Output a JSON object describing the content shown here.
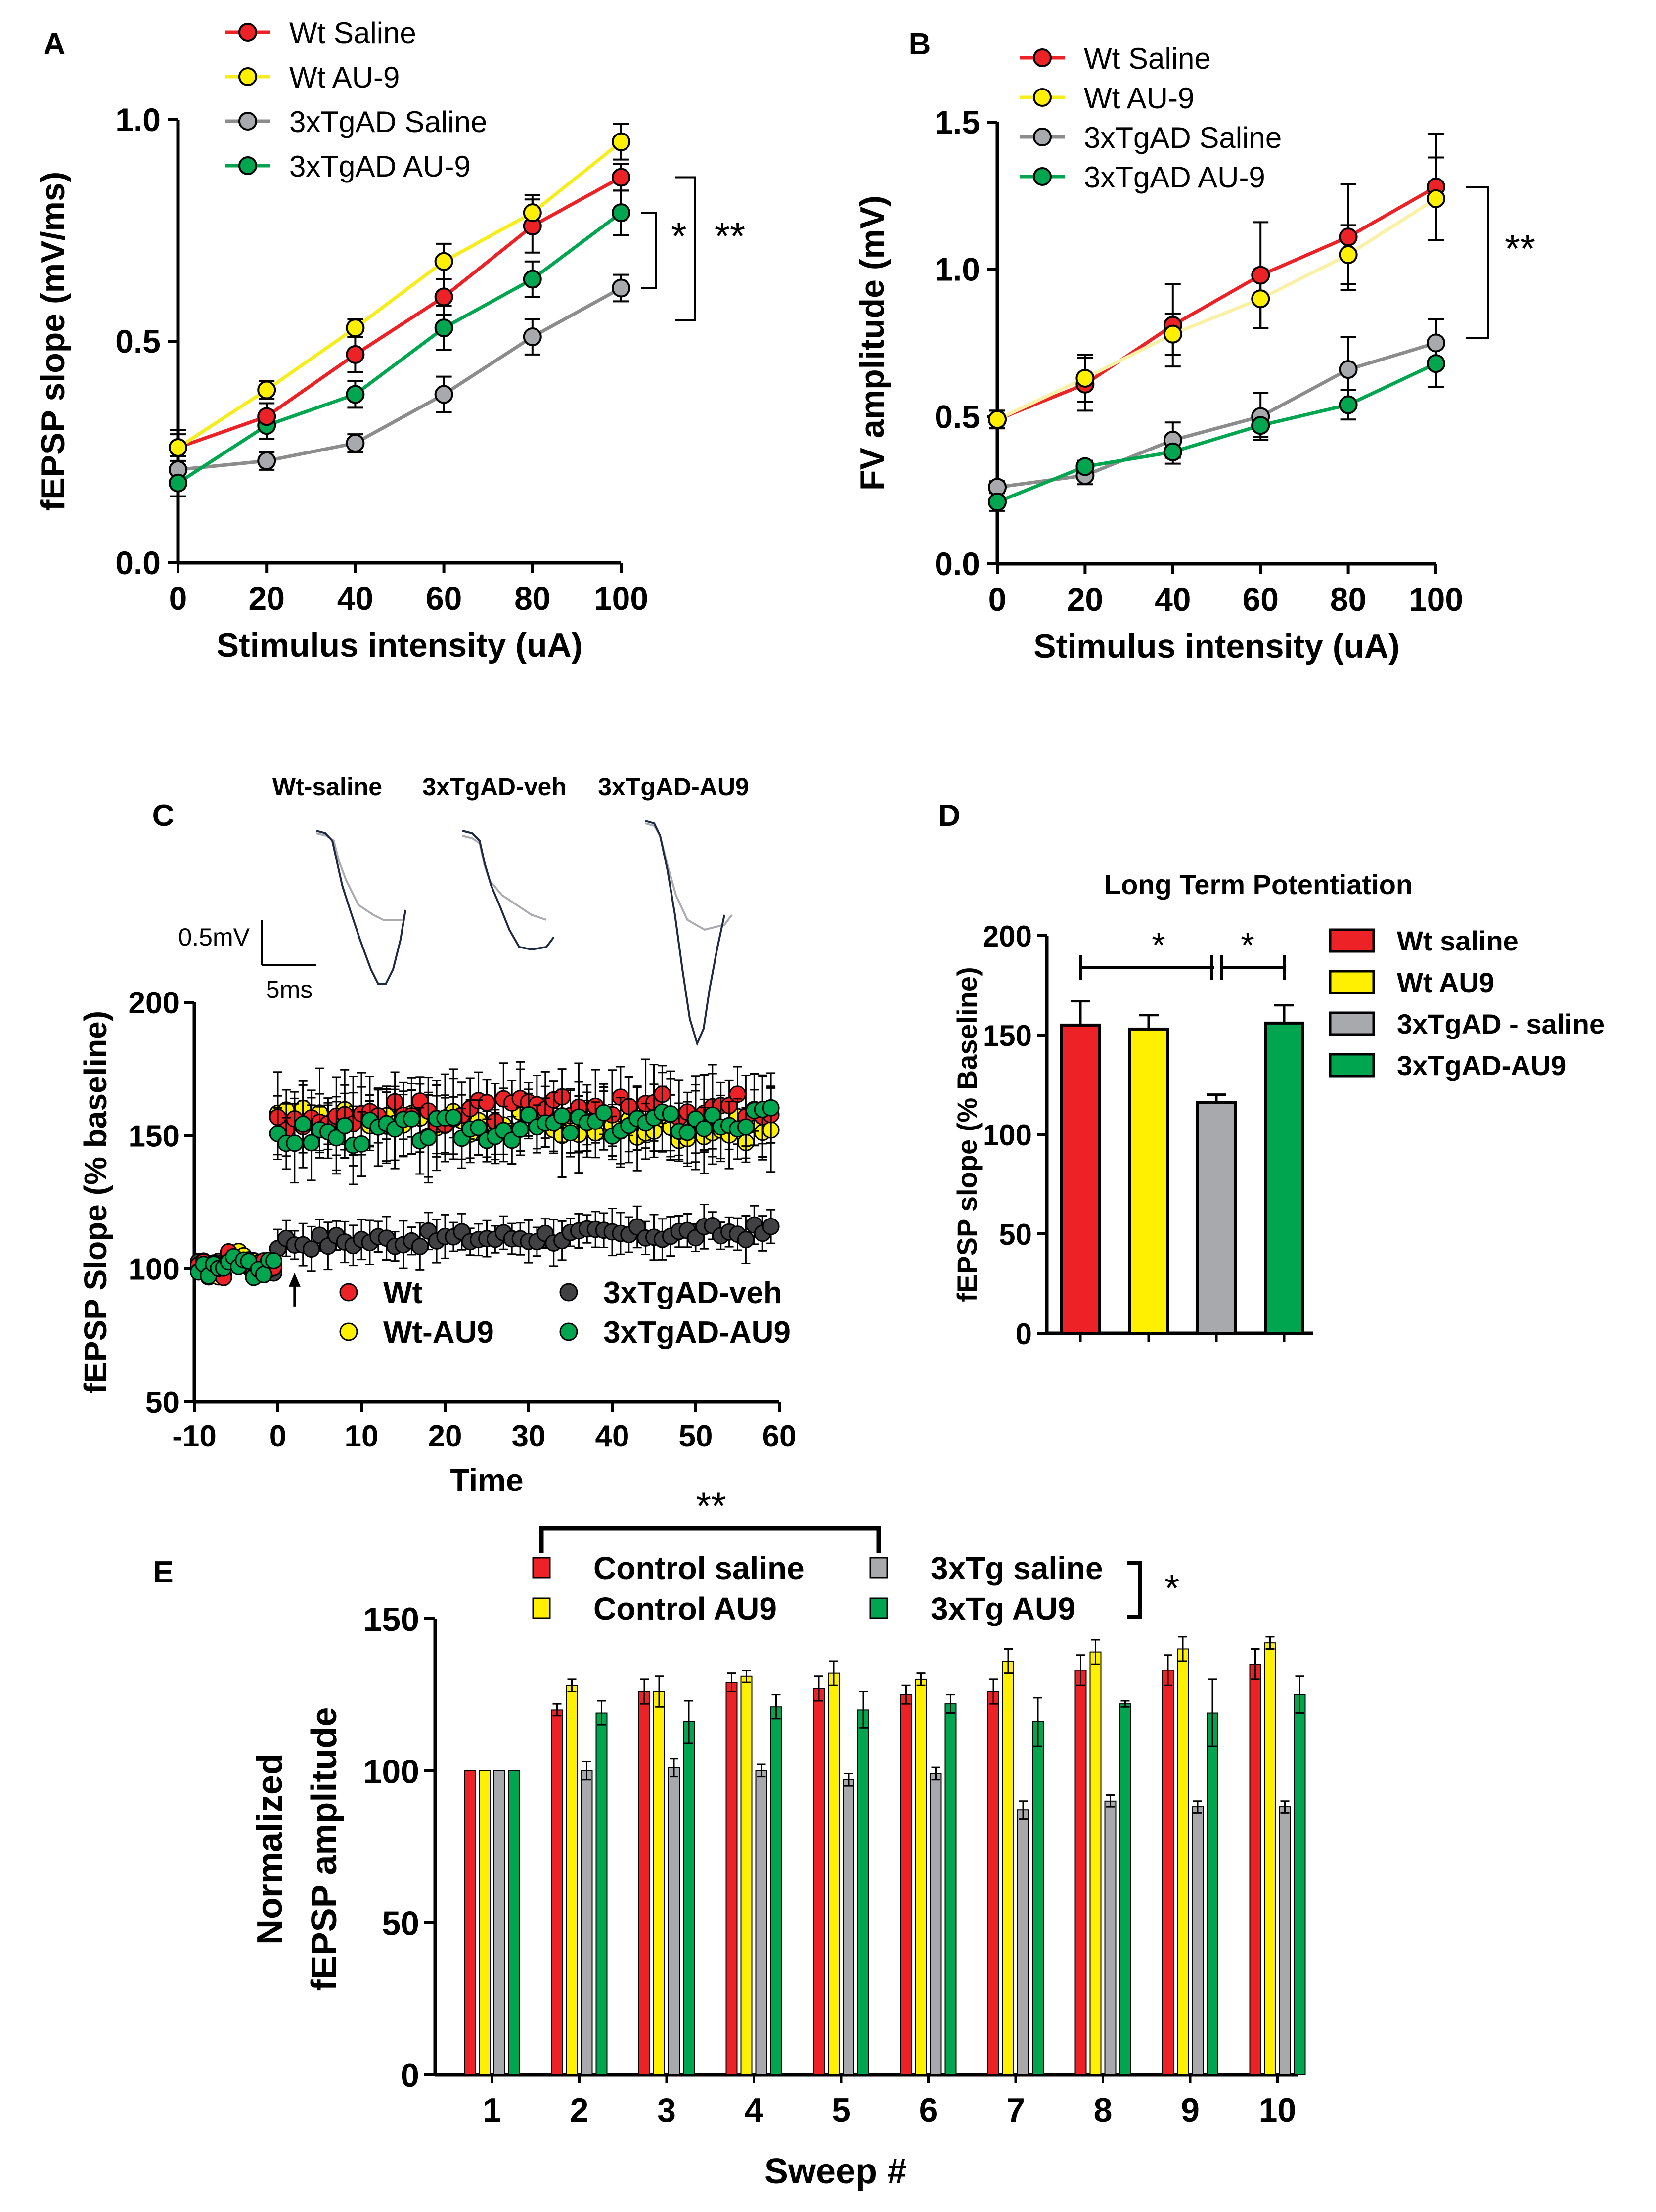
{
  "colors": {
    "red": "#EC2227",
    "yellow": "#FFEF00",
    "yellow_line": "#F6EE1C",
    "yellow_light": "#F9F1A5",
    "gray": "#8C8C8C",
    "gray_marker": "#A7A9AC",
    "gray_dark": "#414042",
    "green": "#00A64F",
    "bar_gray": "#A7A9AC",
    "trace_dark": "#1E2A44",
    "trace_light": "#A9ABB0"
  },
  "chart_data": [
    {
      "panel": "A",
      "type": "line",
      "xlabel": "Stimulus intensity (uA)",
      "ylabel": "fEPSP slope (mV/ms)",
      "xlim": [
        0,
        100
      ],
      "ylim": [
        0,
        1.0
      ],
      "xticks": [
        "0",
        "20",
        "40",
        "60",
        "80",
        "100"
      ],
      "yticks": [
        "0.0",
        "0.5",
        "1.0"
      ],
      "x": [
        0,
        20,
        40,
        60,
        80,
        100
      ],
      "series": [
        {
          "name": "Wt Saline",
          "color": "#EC2227",
          "values": [
            0.26,
            0.33,
            0.47,
            0.6,
            0.76,
            0.87
          ],
          "err": [
            0.04,
            0.03,
            0.04,
            0.04,
            0.06,
            0.03
          ]
        },
        {
          "name": "Wt AU-9",
          "color": "#FFEF00",
          "values": [
            0.26,
            0.39,
            0.53,
            0.68,
            0.79,
            0.95
          ],
          "err": [
            0.03,
            0.02,
            0.02,
            0.04,
            0.04,
            0.04
          ]
        },
        {
          "name": "3xTgAD Saline",
          "color": "#8C8C8C",
          "values": [
            0.21,
            0.23,
            0.27,
            0.38,
            0.51,
            0.62
          ],
          "err": [
            0.03,
            0.02,
            0.02,
            0.04,
            0.04,
            0.03
          ]
        },
        {
          "name": "3xTgAD AU-9",
          "color": "#00A64F",
          "values": [
            0.18,
            0.31,
            0.38,
            0.53,
            0.64,
            0.79
          ],
          "err": [
            0.03,
            0.03,
            0.03,
            0.05,
            0.04,
            0.05
          ]
        }
      ],
      "annotations": [
        "*",
        "**"
      ]
    },
    {
      "panel": "B",
      "type": "line",
      "xlabel": "Stimulus intensity (uA)",
      "ylabel": "FV amplitude (mV)",
      "xlim": [
        0,
        100
      ],
      "ylim": [
        0,
        1.5
      ],
      "xticks": [
        "0",
        "20",
        "40",
        "60",
        "80",
        "100"
      ],
      "yticks": [
        "0.0",
        "0.5",
        "1.0",
        "1.5"
      ],
      "x": [
        0,
        20,
        40,
        60,
        80,
        100
      ],
      "series": [
        {
          "name": "Wt Saline",
          "color": "#EC2227",
          "values": [
            0.49,
            0.61,
            0.81,
            0.98,
            1.11,
            1.28
          ],
          "err": [
            0.03,
            0.09,
            0.14,
            0.18,
            0.18,
            0.18
          ]
        },
        {
          "name": "Wt  AU-9",
          "color": "#FFEF00",
          "values": [
            0.49,
            0.63,
            0.78,
            0.9,
            1.05,
            1.24
          ],
          "err": [
            0.03,
            0.08,
            0.07,
            0.1,
            0.1,
            0.14
          ]
        },
        {
          "name": "3xTgAD Saline",
          "color": "#8C8C8C",
          "values": [
            0.26,
            0.3,
            0.42,
            0.5,
            0.66,
            0.75
          ],
          "err": [
            0.02,
            0.03,
            0.06,
            0.08,
            0.11,
            0.08
          ]
        },
        {
          "name": "3xTgAD AU-9",
          "color": "#00A64F",
          "values": [
            0.21,
            0.33,
            0.38,
            0.47,
            0.54,
            0.68
          ],
          "err": [
            0.03,
            0.02,
            0.04,
            0.04,
            0.05,
            0.08
          ]
        }
      ],
      "annotations": [
        "**"
      ]
    },
    {
      "panel": "C",
      "type": "scatter",
      "xlabel": "Time",
      "ylabel": "fEPSP Slope (% baseline)",
      "xlim": [
        -10,
        60
      ],
      "ylim": [
        50,
        200
      ],
      "xticks": [
        "-10",
        "0",
        "10",
        "20",
        "30",
        "40",
        "50",
        "60"
      ],
      "yticks": [
        "50",
        "100",
        "150",
        "200"
      ],
      "series": [
        {
          "name": "Wt",
          "color": "#EC2227",
          "baseline": 100,
          "post": 157,
          "end": 162
        },
        {
          "name": "Wt-AU9",
          "color": "#FFEF00",
          "baseline": 100,
          "post": 156,
          "end": 152
        },
        {
          "name": "3xTgAD-veh",
          "color": "#414042",
          "baseline": 100,
          "post": 110,
          "end": 114
        },
        {
          "name": "3xTgAD-AU9",
          "color": "#00A64F",
          "baseline": 100,
          "post": 150,
          "end": 156
        }
      ],
      "trace_labels": [
        "Wt-saline",
        "3xTgAD-veh",
        "3xTgAD-AU9"
      ],
      "scalebar": {
        "v": "0.5mV",
        "t": "5ms"
      }
    },
    {
      "panel": "D",
      "type": "bar",
      "title": "Long Term Potentiation",
      "ylabel": "fEPSP slope (% Baseline)",
      "ylim": [
        0,
        200
      ],
      "yticks": [
        "0",
        "50",
        "100",
        "150",
        "200"
      ],
      "categories": [
        "Wt saline",
        "Wt AU9",
        "3xTgAD - saline",
        "3xTgAD-AU9"
      ],
      "colors": [
        "#EC2227",
        "#FFEF00",
        "#A7A9AC",
        "#00A64F"
      ],
      "values": [
        155,
        153,
        116,
        156
      ],
      "err": [
        12,
        7,
        4,
        9
      ],
      "annotations": [
        "*",
        "*"
      ]
    },
    {
      "panel": "E",
      "type": "bar",
      "xlabel": "Sweep #",
      "ylabel_lines": [
        "Normalized",
        "fEPSP amplitude"
      ],
      "ylim": [
        0,
        150
      ],
      "yticks": [
        "0",
        "50",
        "100",
        "150"
      ],
      "categories": [
        "1",
        "2",
        "3",
        "4",
        "5",
        "6",
        "7",
        "8",
        "9",
        "10"
      ],
      "series": [
        {
          "name": "Control saline",
          "color": "#EC2227",
          "values": [
            100,
            120,
            126,
            129,
            127,
            125,
            126,
            133,
            133,
            135
          ],
          "err": [
            0,
            2,
            4,
            3,
            4,
            3,
            4,
            5,
            5,
            5
          ]
        },
        {
          "name": "Control AU9",
          "color": "#FFEF00",
          "values": [
            100,
            128,
            126,
            131,
            132,
            130,
            136,
            139,
            140,
            142
          ],
          "err": [
            0,
            2,
            5,
            2,
            4,
            2,
            4,
            4,
            4,
            2
          ]
        },
        {
          "name": "3xTg saline",
          "color": "#A7A9AC",
          "values": [
            100,
            100,
            101,
            100,
            97,
            99,
            87,
            90,
            88,
            88
          ],
          "err": [
            0,
            3,
            3,
            2,
            2,
            2,
            3,
            2,
            2,
            2
          ]
        },
        {
          "name": "3xTg AU9",
          "color": "#00A64F",
          "values": [
            100,
            119,
            116,
            121,
            120,
            122,
            116,
            122,
            119,
            125
          ],
          "err": [
            0,
            4,
            7,
            4,
            6,
            3,
            8,
            1,
            11,
            6
          ]
        }
      ],
      "annotations": [
        "**",
        "*"
      ]
    }
  ]
}
